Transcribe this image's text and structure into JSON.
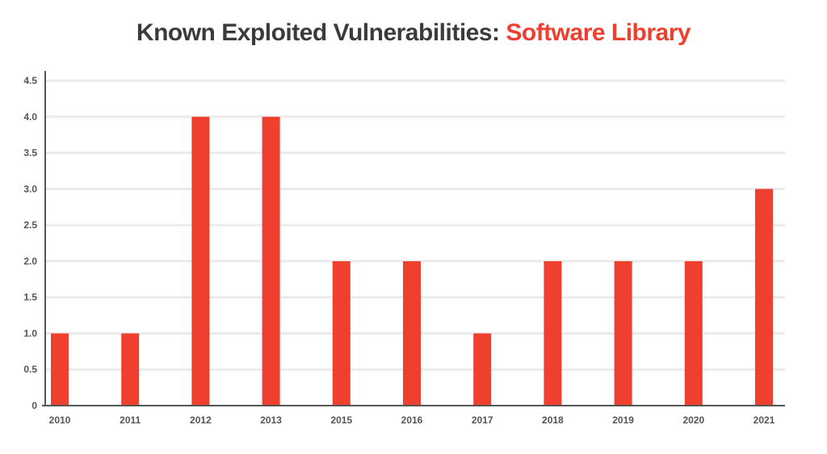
{
  "title": {
    "prefix": "Known Exploited Vulnerabilities:",
    "highlight": "Software Library"
  },
  "colors": {
    "bar": "#ee3f2f",
    "title_dark": "#3b3b3b",
    "grid": "#ebebeb",
    "axis": "#555555"
  },
  "chart_data": {
    "type": "bar",
    "title": "Known Exploited Vulnerabilities: Software Library",
    "xlabel": "",
    "ylabel": "",
    "categories": [
      "2010",
      "2011",
      "2012",
      "2013",
      "2015",
      "2016",
      "2017",
      "2018",
      "2019",
      "2020",
      "2021"
    ],
    "values": [
      1,
      1,
      4,
      4,
      2,
      2,
      1,
      2,
      2,
      2,
      3
    ],
    "ylim": [
      0,
      4.5
    ],
    "yticks": [
      "0",
      "0.5",
      "1.0",
      "1.5",
      "2.0",
      "2.5",
      "3.0",
      "3.5",
      "4.0",
      "4.5"
    ],
    "grid": true,
    "legend": "none"
  }
}
